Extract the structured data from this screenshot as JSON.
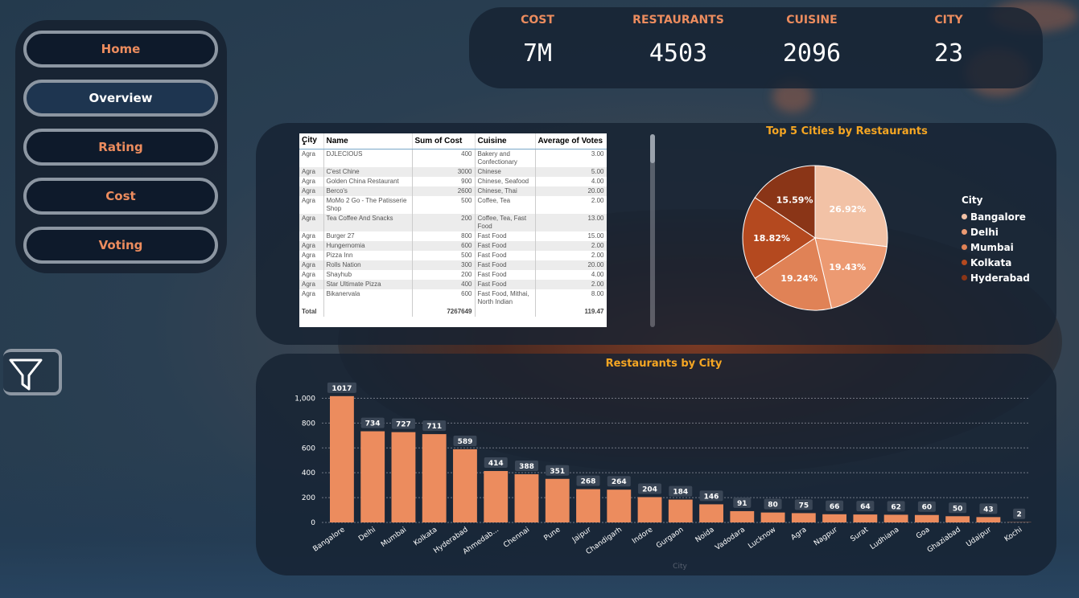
{
  "nav": {
    "items": [
      {
        "label": "Home",
        "active": false
      },
      {
        "label": "Overview",
        "active": true
      },
      {
        "label": "Rating",
        "active": false
      },
      {
        "label": "Cost",
        "active": false
      },
      {
        "label": "Voting",
        "active": false
      }
    ]
  },
  "kpis": [
    {
      "label": "COST",
      "value": "7M"
    },
    {
      "label": "RESTAURANTS",
      "value": "4503"
    },
    {
      "label": "CUISINE",
      "value": "2096"
    },
    {
      "label": "CITY",
      "value": "23"
    }
  ],
  "table": {
    "columns": [
      "City",
      "Name",
      "Sum of Cost",
      "Cuisine",
      "Average of Votes"
    ],
    "sort_column": "City",
    "rows": [
      [
        "Agra",
        "DJLECIOUS",
        "400",
        "Bakery and Confectionary",
        "3.00"
      ],
      [
        "Agra",
        "C'est Chine",
        "3000",
        "Chinese",
        "5.00"
      ],
      [
        "Agra",
        "Golden China Restaurant",
        "900",
        "Chinese, Seafood",
        "4.00"
      ],
      [
        "Agra",
        "Berco's",
        "2600",
        "Chinese, Thai",
        "20.00"
      ],
      [
        "Agra",
        "MoMo 2 Go - The Patisserie Shop",
        "500",
        "Coffee, Tea",
        "2.00"
      ],
      [
        "Agra",
        "Tea Coffee And Snacks",
        "200",
        "Coffee, Tea, Fast Food",
        "13.00"
      ],
      [
        "Agra",
        "Burger 27",
        "800",
        "Fast Food",
        "15.00"
      ],
      [
        "Agra",
        "Hungernomia",
        "600",
        "Fast Food",
        "2.00"
      ],
      [
        "Agra",
        "Pizza Inn",
        "500",
        "Fast Food",
        "2.00"
      ],
      [
        "Agra",
        "Rolls Nation",
        "300",
        "Fast Food",
        "20.00"
      ],
      [
        "Agra",
        "Shayhub",
        "200",
        "Fast Food",
        "4.00"
      ],
      [
        "Agra",
        "Star Ultimate Pizza",
        "400",
        "Fast Food",
        "2.00"
      ],
      [
        "Agra",
        "Bikanervala",
        "600",
        "Fast Food, Mithai, North Indian",
        "8.00"
      ]
    ],
    "total": {
      "label": "Total",
      "cost": "7267649",
      "votes": "119.47"
    }
  },
  "chart_data": [
    {
      "type": "pie",
      "title": "Top 5 Cities by Restaurants",
      "legend_title": "City",
      "legend_position": "right",
      "categories": [
        "Bangalore",
        "Delhi",
        "Mumbai",
        "Kolkata",
        "Hyderabad"
      ],
      "values": [
        26.92,
        19.43,
        19.24,
        18.82,
        15.59
      ],
      "labels": [
        "26.92%",
        "19.43%",
        "19.24%",
        "18.82%",
        "15.59%"
      ],
      "colors": [
        "#f2c2a6",
        "#ec9a72",
        "#e08256",
        "#b4491f",
        "#8a3517"
      ]
    },
    {
      "type": "bar",
      "title": "Restaurants by City",
      "xlabel": "City",
      "ylabel": "",
      "grid": true,
      "ylim": [
        0,
        1100
      ],
      "yticks": [
        "0",
        "200",
        "400",
        "600",
        "800",
        "1,000"
      ],
      "categories": [
        "Bangalore",
        "Delhi",
        "Mumbai",
        "Kolkata",
        "Hyderabad",
        "Ahmedab...",
        "Chennai",
        "Pune",
        "Jaipur",
        "Chandigarh",
        "Indore",
        "Gurgaon",
        "Noida",
        "Vadodara",
        "Lucknow",
        "Agra",
        "Nagpur",
        "Surat",
        "Ludhiana",
        "Goa",
        "Ghaziabad",
        "Udaipur",
        "Kochi"
      ],
      "values": [
        1017,
        734,
        727,
        711,
        589,
        414,
        388,
        351,
        268,
        264,
        204,
        184,
        146,
        91,
        80,
        75,
        66,
        64,
        62,
        60,
        50,
        43,
        2
      ],
      "color": "#ec8c5e"
    }
  ]
}
